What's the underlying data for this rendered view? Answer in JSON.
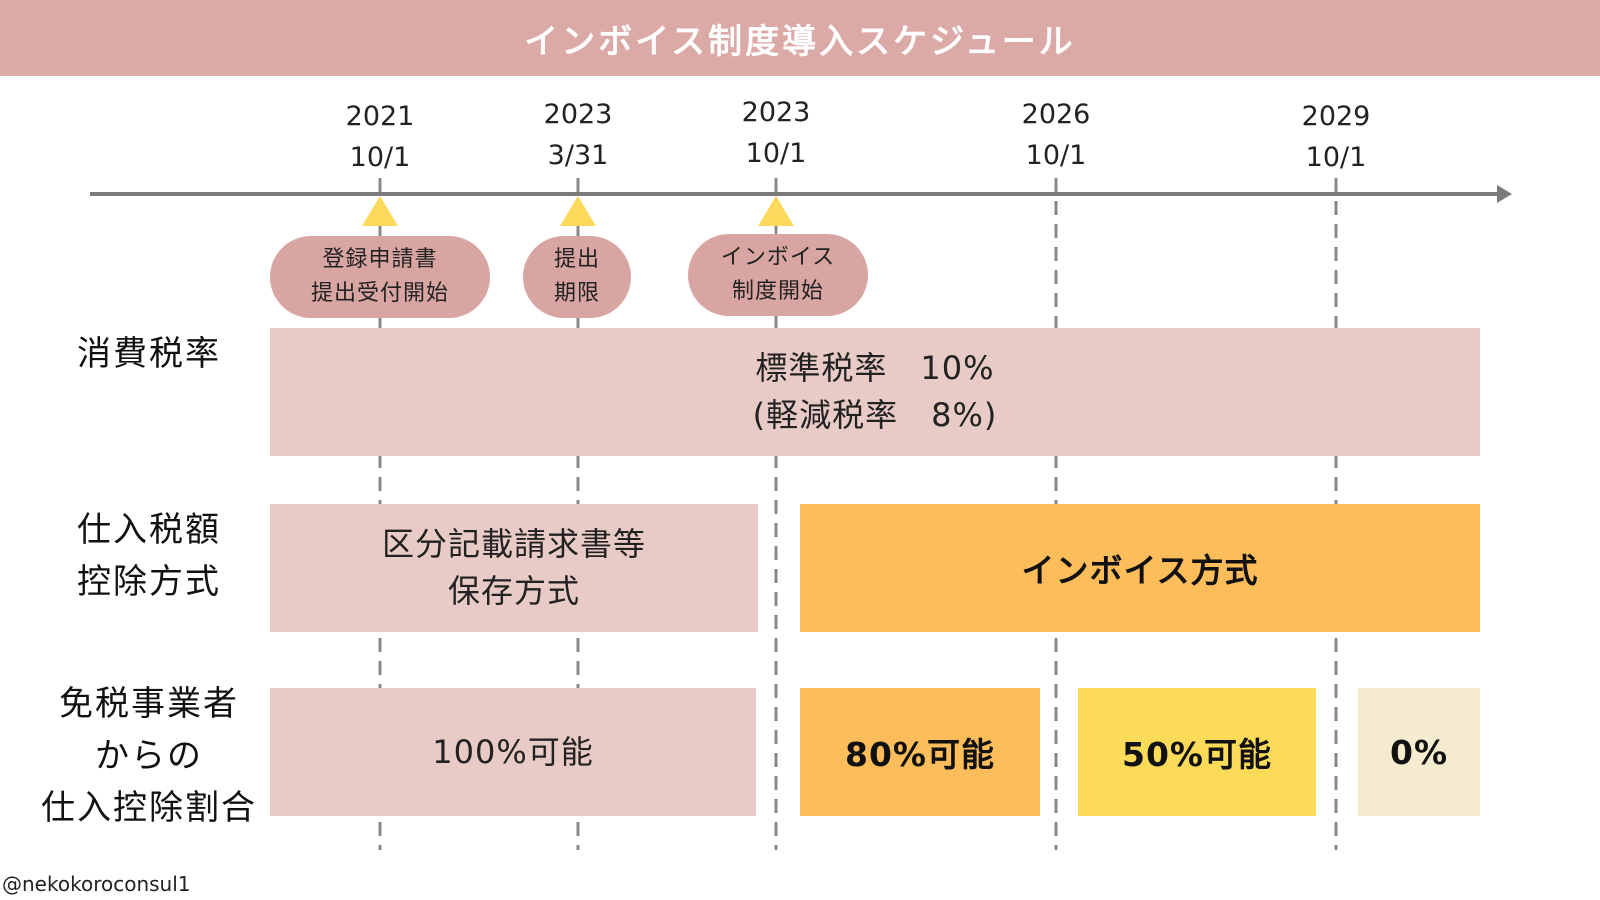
{
  "title": "インボイス制度導入スケジュール",
  "timeline": {
    "dates": [
      {
        "year": "2021",
        "day": "10/1"
      },
      {
        "year": "2023",
        "day": "3/31"
      },
      {
        "year": "2023",
        "day": "10/1"
      },
      {
        "year": "2026",
        "day": "10/1"
      },
      {
        "year": "2029",
        "day": "10/1"
      }
    ],
    "events": [
      {
        "line1": "登録申請書",
        "line2": "提出受付開始"
      },
      {
        "line1": "提出",
        "line2": "期限"
      },
      {
        "line1": "インボイス",
        "line2": "制度開始"
      }
    ]
  },
  "rows": {
    "consumption_tax": {
      "label": "消費税率",
      "standard": "標準税率　10%",
      "reduced": "(軽減税率　8%)"
    },
    "deduction_method": {
      "label_line1": "仕入税額",
      "label_line2": "控除方式",
      "before_line1": "区分記載請求書等",
      "before_line2": "保存方式",
      "after": "インボイス方式"
    },
    "exempt_ratio": {
      "label_line1": "免税事業者",
      "label_line2": "からの",
      "label_line3": "仕入控除割合",
      "phase1": "100%可能",
      "phase2": "80%可能",
      "phase3": "50%可能",
      "phase4": "0%"
    }
  },
  "credit": "@nekokoroconsul1",
  "colors": {
    "banner": "#dba9a6",
    "event_bubble": "#d9a5a2",
    "pink_box": "#e8cbc6",
    "orange_box": "#fdbd5a",
    "yellow_box": "#fcdb58",
    "cream_box": "#f5ebcf",
    "marker": "#fcd95a",
    "axis": "#7a7a7a"
  }
}
